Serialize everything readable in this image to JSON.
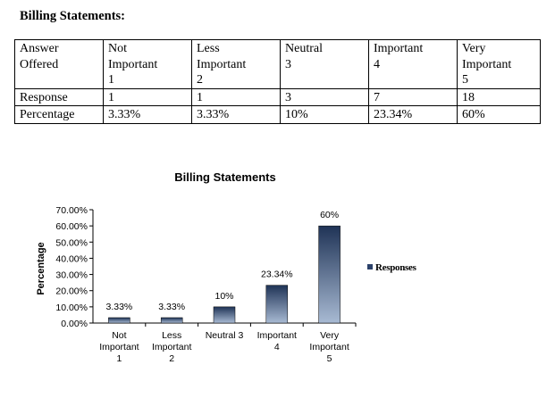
{
  "heading": "Billing Statements:",
  "table": {
    "rows": [
      {
        "label": [
          "Answer",
          "Offered"
        ],
        "cells": [
          [
            "Not",
            "Important",
            "1"
          ],
          [
            "Less",
            "Important",
            "2"
          ],
          [
            "Neutral",
            "3"
          ],
          [
            "Important",
            "4"
          ],
          [
            "Very",
            "Important",
            "5"
          ]
        ]
      },
      {
        "label": [
          "Response"
        ],
        "cells": [
          [
            "1"
          ],
          [
            "1"
          ],
          [
            "3"
          ],
          [
            "7"
          ],
          [
            "18"
          ]
        ]
      },
      {
        "label": [
          "Percentage"
        ],
        "cells": [
          [
            "3.33%"
          ],
          [
            "3.33%"
          ],
          [
            "10%"
          ],
          [
            "23.34%"
          ],
          [
            "60%"
          ]
        ]
      }
    ]
  },
  "chart_data": {
    "type": "bar",
    "title": "Billing Statements",
    "ylabel": "Percentage",
    "xlabel": "",
    "categories": [
      [
        "Not",
        "Important",
        "1"
      ],
      [
        "Less",
        "Important",
        "2"
      ],
      [
        "Neutral 3"
      ],
      [
        "Important",
        "4"
      ],
      [
        "Very",
        "Important",
        "5"
      ]
    ],
    "series": [
      {
        "name": "Responses",
        "values": [
          3.33,
          3.33,
          10,
          23.34,
          60
        ]
      }
    ],
    "data_labels": [
      "3.33%",
      "3.33%",
      "10%",
      "23.34%",
      "60%"
    ],
    "yticks": [
      "0.00%",
      "10.00%",
      "20.00%",
      "30.00%",
      "40.00%",
      "50.00%",
      "60.00%",
      "70.00%"
    ],
    "ylim": [
      0,
      70
    ],
    "grid": false,
    "legend_position": "right",
    "colors": {
      "bar_dark": "#1f3356",
      "bar_light": "#a8bad3",
      "legend": "#2b416a"
    }
  }
}
